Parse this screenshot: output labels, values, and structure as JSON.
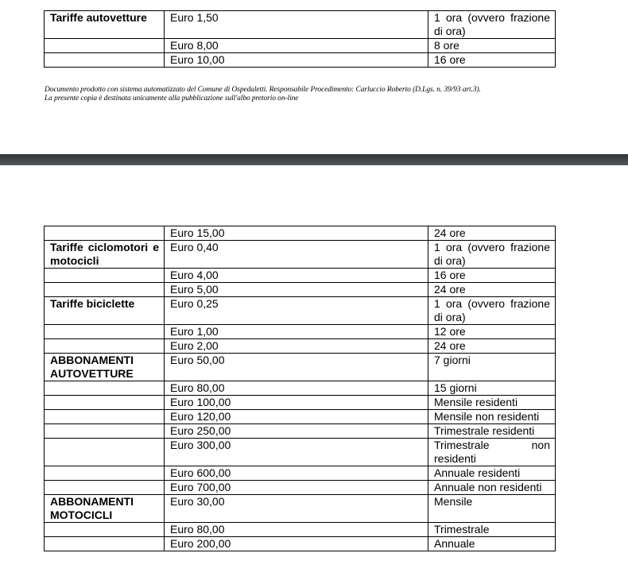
{
  "page1": {
    "rows": [
      {
        "category": "Tariffe autovetture",
        "price": "Euro 1,50",
        "duration": "1 ora (ovvero frazione di ora)"
      },
      {
        "category": "",
        "price": "Euro 8,00",
        "duration": "8 ore"
      },
      {
        "category": "",
        "price": "Euro 10,00",
        "duration": "16 ore"
      }
    ],
    "footer": {
      "line1": "Documento prodotto con sistema automatizzato del Comune di Ospedaletti.  Responsabile Procedimento: Carluccio Roberto  (D.Lgs. n. 39/93 art.3).",
      "line2": "La presente copia è destinata unicamente alla pubblicazione sull'albo pretorio on-line"
    }
  },
  "page2": {
    "rows": [
      {
        "category": "",
        "price": "Euro 15,00",
        "duration": "24 ore"
      },
      {
        "category": "Tariffe ciclomotori e motocicli",
        "price": "Euro 0,40",
        "duration": "1 ora (ovvero frazione di ora)"
      },
      {
        "category": "",
        "price": "Euro 4,00",
        "duration": "16 ore"
      },
      {
        "category": "",
        "price": "Euro 5,00",
        "duration": "24 ore"
      },
      {
        "category": "Tariffe biciclette",
        "price": "Euro 0,25",
        "duration": "1 ora (ovvero frazione di ora)"
      },
      {
        "category": "",
        "price": "Euro 1,00",
        "duration": "12 ore"
      },
      {
        "category": "",
        "price": "Euro 2,00",
        "duration": "24 ore"
      },
      {
        "category": "ABBONAMENTI AUTOVETTURE",
        "price": "Euro 50,00",
        "duration": "7 giorni"
      },
      {
        "category": "",
        "price": "Euro 80,00",
        "duration": "15 giorni"
      },
      {
        "category": "",
        "price": "Euro 100,00",
        "duration": "Mensile residenti"
      },
      {
        "category": "",
        "price": "Euro 120,00",
        "duration": "Mensile non residenti"
      },
      {
        "category": "",
        "price": "Euro 250,00",
        "duration": "Trimestrale residenti"
      },
      {
        "category": "",
        "price": "Euro 300,00",
        "duration": "Trimestrale non residenti"
      },
      {
        "category": "",
        "price": "Euro 600,00",
        "duration": "Annuale residenti"
      },
      {
        "category": "",
        "price": "Euro 700,00",
        "duration": "Annuale non residenti"
      },
      {
        "category": "ABBONAMENTI MOTOCICLI",
        "price": "Euro 30,00",
        "duration": "Mensile"
      },
      {
        "category": "",
        "price": "Euro 80,00",
        "duration": "Trimestrale"
      },
      {
        "category": "",
        "price": "Euro 200,00",
        "duration": "Annuale"
      }
    ]
  }
}
